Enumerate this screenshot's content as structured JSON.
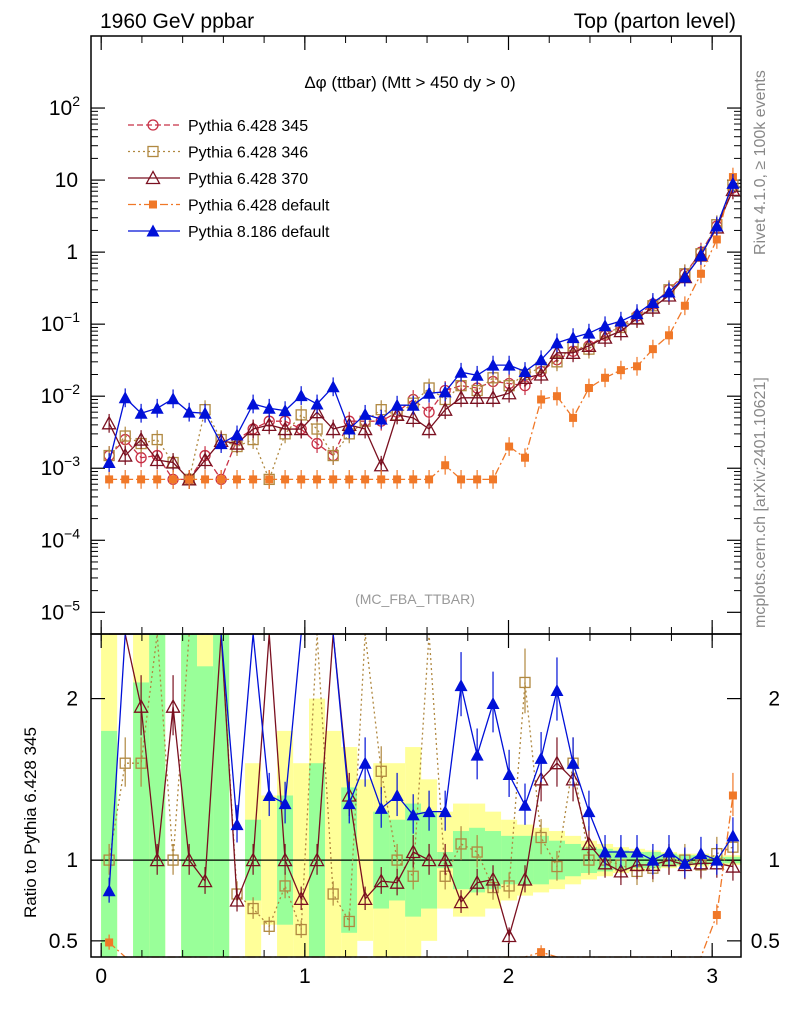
{
  "header": {
    "left": "1960 GeV ppbar",
    "right": "Top (parton level)"
  },
  "side_labels": {
    "top": "Rivet 4.1.0, ≥ 100k events",
    "bottom": "mcplots.cern.ch [arXiv:2401.10621]"
  },
  "plot_title": "Δφ (ttbar) (Mtt > 450 dy > 0)",
  "watermark": "(MC_FBA_TTBAR)",
  "ratio_ylabel": "Ratio to Pythia 6.428 345",
  "main_yticks": [
    {
      "v": 1e-05,
      "base": "10",
      "exp": "−5"
    },
    {
      "v": 0.0001,
      "base": "10",
      "exp": "−4"
    },
    {
      "v": 0.001,
      "base": "10",
      "exp": "−3"
    },
    {
      "v": 0.01,
      "base": "10",
      "exp": "−2"
    },
    {
      "v": 0.1,
      "base": "10",
      "exp": "−1"
    },
    {
      "v": 1,
      "base": "1",
      "exp": ""
    },
    {
      "v": 10,
      "base": "10",
      "exp": ""
    },
    {
      "v": 100,
      "base": "10",
      "exp": "2"
    }
  ],
  "ratio_yticks": [
    {
      "v": 0.5,
      "label": "0.5"
    },
    {
      "v": 1,
      "label": "1"
    },
    {
      "v": 2,
      "label": "2"
    }
  ],
  "xticks": [
    {
      "v": 0,
      "label": "0"
    },
    {
      "v": 1,
      "label": "1"
    },
    {
      "v": 2,
      "label": "2"
    },
    {
      "v": 3,
      "label": "3"
    }
  ],
  "chart_data": {
    "type": "line",
    "xlabel": "",
    "ylabel": "",
    "xlim": [
      -0.05,
      3.1416
    ],
    "ylim": [
      5e-06,
      1000
    ],
    "yscale": "log",
    "ratio_ylim": [
      0.4,
      2.4
    ],
    "legend_position": "top-left",
    "x": [
      0.039,
      0.118,
      0.196,
      0.275,
      0.353,
      0.432,
      0.51,
      0.589,
      0.667,
      0.746,
      0.825,
      0.903,
      0.982,
      1.06,
      1.139,
      1.218,
      1.296,
      1.375,
      1.453,
      1.532,
      1.61,
      1.689,
      1.767,
      1.846,
      1.924,
      2.003,
      2.081,
      2.16,
      2.238,
      2.317,
      2.395,
      2.474,
      2.552,
      2.631,
      2.709,
      2.788,
      2.866,
      2.945,
      3.023,
      3.102
    ],
    "series": [
      {
        "name": "Pythia 6.428 345",
        "color": "#c83046",
        "dash": "6,3",
        "marker": "circle-open",
        "values": [
          0.0015,
          0.0025,
          0.0014,
          0.0015,
          0.0007,
          0.0007,
          0.0015,
          0.0007,
          0.0025,
          0.0035,
          0.0045,
          0.0045,
          0.0035,
          0.0022,
          0.0015,
          0.0045,
          0.0045,
          0.0045,
          0.006,
          0.009,
          0.006,
          0.012,
          0.014,
          0.013,
          0.016,
          0.015,
          0.014,
          0.022,
          0.032,
          0.042,
          0.05,
          0.07,
          0.095,
          0.13,
          0.19,
          0.3,
          0.5,
          1.0,
          2.3,
          7.8
        ]
      },
      {
        "name": "Pythia 6.428 346",
        "color": "#b08840",
        "dash": "2,3",
        "marker": "square-open",
        "values": [
          0.0015,
          0.0028,
          0.0022,
          0.0025,
          0.0012,
          0.0007,
          0.0065,
          0.0025,
          0.002,
          0.0025,
          0.0007,
          0.003,
          0.0055,
          0.0035,
          0.0015,
          0.003,
          0.0045,
          0.0065,
          0.0055,
          0.008,
          0.013,
          0.009,
          0.014,
          0.012,
          0.018,
          0.014,
          0.02,
          0.025,
          0.03,
          0.05,
          0.045,
          0.075,
          0.09,
          0.12,
          0.18,
          0.3,
          0.5,
          0.95,
          2.4,
          8.5
        ]
      },
      {
        "name": "Pythia 6.428 370",
        "color": "#7a1020",
        "dash": "",
        "marker": "triangle-open",
        "values": [
          0.0042,
          0.0015,
          0.0025,
          0.0013,
          0.0012,
          0.0007,
          0.0013,
          0.0024,
          0.0022,
          0.0035,
          0.004,
          0.0035,
          0.0035,
          0.006,
          0.0035,
          0.004,
          0.0035,
          0.0011,
          0.0055,
          0.005,
          0.0035,
          0.0065,
          0.0095,
          0.0095,
          0.0095,
          0.011,
          0.018,
          0.02,
          0.04,
          0.04,
          0.05,
          0.065,
          0.08,
          0.12,
          0.17,
          0.25,
          0.45,
          0.9,
          2.2,
          7.3
        ]
      },
      {
        "name": "Pythia 6.428 default",
        "color": "#f07828",
        "dash": "8,3,2,3",
        "marker": "square-filled",
        "values": [
          0.0007,
          0.0007,
          0.0007,
          0.0007,
          0.0007,
          0.0007,
          0.0007,
          0.0007,
          0.0007,
          0.0007,
          0.0007,
          0.0007,
          0.0007,
          0.0007,
          0.0007,
          0.0007,
          0.0007,
          0.0007,
          0.0007,
          0.0007,
          0.0007,
          0.0011,
          0.0007,
          0.0007,
          0.0007,
          0.002,
          0.0014,
          0.009,
          0.01,
          0.005,
          0.013,
          0.018,
          0.023,
          0.026,
          0.045,
          0.07,
          0.18,
          0.5,
          1.5,
          11
        ]
      },
      {
        "name": "Pythia 8.186 default",
        "color": "#0010d8",
        "dash": "",
        "marker": "triangle-filled",
        "values": [
          0.0012,
          0.0095,
          0.0058,
          0.0068,
          0.0092,
          0.006,
          0.0058,
          0.0022,
          0.0029,
          0.0078,
          0.0068,
          0.0063,
          0.0102,
          0.0078,
          0.0135,
          0.0035,
          0.0056,
          0.0048,
          0.0075,
          0.0075,
          0.011,
          0.0115,
          0.0215,
          0.0195,
          0.027,
          0.027,
          0.022,
          0.032,
          0.055,
          0.065,
          0.075,
          0.095,
          0.11,
          0.14,
          0.2,
          0.28,
          0.45,
          0.9,
          2.3,
          9.0
        ]
      }
    ],
    "ratios": [
      {
        "name": "Pythia 6.428 346",
        "values": [
          1.0,
          1.6,
          1.6,
          2.4,
          1.0,
          2.4,
          2.4,
          2.4,
          0.79,
          0.7,
          0.59,
          0.84,
          0.57,
          2.4,
          0.79,
          0.62,
          2.4,
          1.55,
          1.0,
          0.9,
          2.4,
          0.9,
          1.1,
          1.05,
          0.83,
          0.84,
          2.1,
          1.14,
          0.96,
          1.6,
          1.0,
          1.0,
          0.97,
          0.93,
          0.95,
          1.0,
          1.0,
          0.97,
          1.04,
          1.08
        ]
      },
      {
        "name": "Pythia 6.428 370",
        "values": [
          2.4,
          2.4,
          1.95,
          1.0,
          1.95,
          1.0,
          0.87,
          2.4,
          0.75,
          1.0,
          2.4,
          1.0,
          0.76,
          1.0,
          2.4,
          1.4,
          0.76,
          0.87,
          0.86,
          1.05,
          1.0,
          1.0,
          0.74,
          0.86,
          0.88,
          0.53,
          0.88,
          1.5,
          1.6,
          1.5,
          1.1,
          0.98,
          0.93,
          0.97,
          0.97,
          1.0,
          0.97,
          0.98,
          0.98,
          0.96
        ]
      },
      {
        "name": "Pythia 6.428 default",
        "values": [
          0.49,
          0.4,
          0.4,
          0.4,
          0.4,
          0.4,
          0.4,
          0.4,
          0.4,
          0.4,
          0.4,
          0.4,
          0.4,
          0.4,
          0.4,
          0.4,
          0.4,
          0.4,
          0.4,
          0.4,
          0.4,
          0.4,
          0.4,
          0.4,
          0.4,
          0.4,
          0.4,
          0.43,
          0.4,
          0.4,
          0.4,
          0.4,
          0.4,
          0.4,
          0.4,
          0.4,
          0.37,
          0.4,
          0.66,
          1.4
        ]
      },
      {
        "name": "Pythia 8.186 default",
        "values": [
          0.81,
          2.4,
          2.4,
          2.4,
          2.4,
          2.4,
          2.4,
          2.4,
          1.22,
          2.4,
          1.4,
          1.35,
          2.4,
          2.4,
          2.4,
          1.35,
          1.6,
          1.32,
          1.4,
          1.28,
          1.3,
          1.3,
          2.08,
          1.65,
          1.97,
          1.53,
          1.34,
          1.63,
          2.05,
          1.6,
          1.3,
          1.05,
          1.05,
          1.05,
          1.0,
          1.05,
          0.98,
          1.04,
          1.0,
          1.15
        ]
      }
    ],
    "ratio_band": {
      "inner": [
        1.8,
        0.4,
        2.1,
        2.4,
        0.4,
        2.4,
        2.2,
        2.4,
        0.5,
        1.25,
        0.55,
        1.4,
        0.6,
        1.6,
        0.95,
        1.45,
        0.75,
        1.3,
        1.25,
        1.35,
        1.3,
        1.05,
        1.18,
        1.2,
        1.18,
        1.15,
        1.15,
        1.15,
        1.12,
        1.1,
        1.08,
        1.07,
        1.06,
        1.05,
        1.05,
        1.04,
        1.03,
        1.03,
        1.02,
        1.02
      ],
      "outer": [
        2.4,
        0.4,
        2.4,
        2.4,
        0.4,
        2.4,
        2.4,
        2.4,
        0.5,
        1.6,
        1.4,
        1.8,
        1.6,
        2.0,
        1.8,
        1.7,
        1.5,
        1.6,
        1.6,
        1.7,
        1.5,
        1.3,
        1.35,
        1.35,
        1.3,
        1.25,
        1.22,
        1.2,
        1.18,
        1.15,
        1.12,
        1.1,
        1.08,
        1.07,
        1.06,
        1.05,
        1.04,
        1.04,
        1.03,
        1.03
      ]
    }
  }
}
